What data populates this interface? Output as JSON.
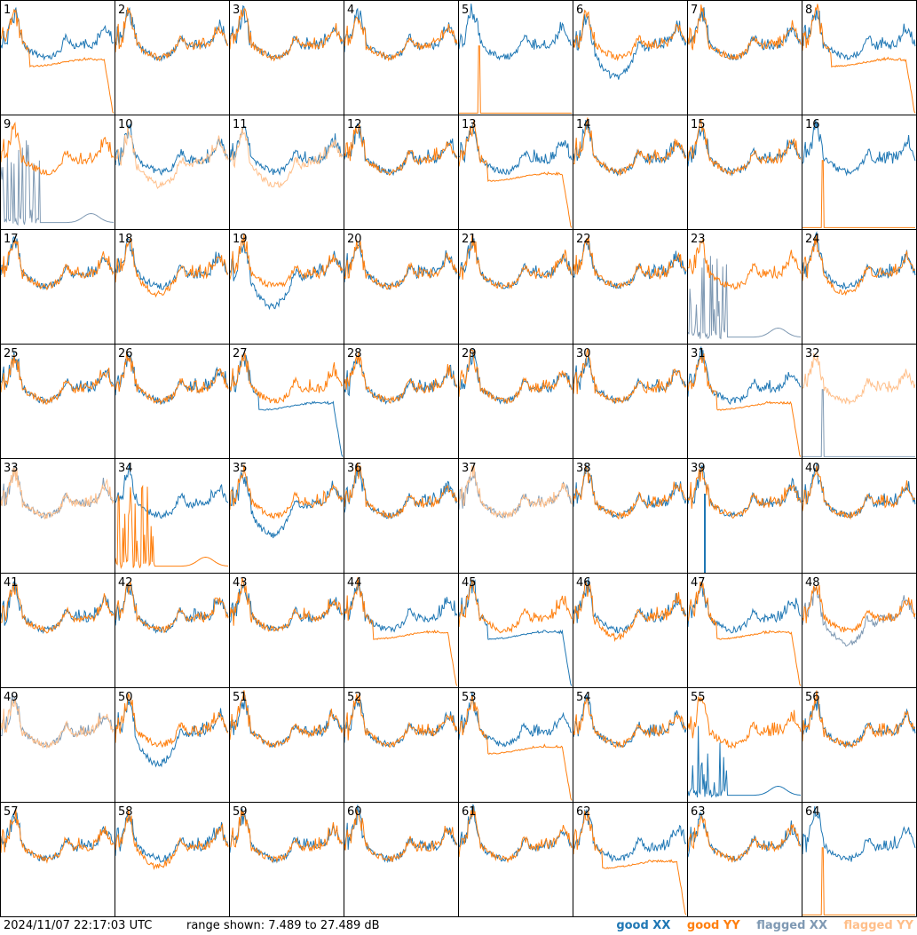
{
  "colors": {
    "good_xx": "#1f77b4",
    "good_yy": "#ff7f0e",
    "flagged_xx": "#7f99b3",
    "flagged_yy": "#ffbf8a",
    "grid": "#000000"
  },
  "footer": {
    "timestamp": "2024/11/07 22:17:03 UTC",
    "range": "range shown: 7.489 to 27.489 dB"
  },
  "legend": {
    "good_xx": "good XX",
    "good_yy": "good YY",
    "flagged_xx": "flagged XX",
    "flagged_yy": "flagged YY"
  },
  "chart_data": {
    "type": "line",
    "layout": "8x8 small multiples, antenna spectra",
    "y_range_db": [
      7.489,
      27.489
    ],
    "series_names": [
      "good XX",
      "good YY",
      "flagged XX",
      "flagged YY"
    ],
    "panels": [
      {
        "n": "1",
        "xx": "good",
        "yy": "good",
        "shape": "yy_dropoff"
      },
      {
        "n": "2",
        "xx": "good",
        "yy": "good",
        "shape": "normal"
      },
      {
        "n": "3",
        "xx": "good",
        "yy": "good",
        "shape": "normal"
      },
      {
        "n": "4",
        "xx": "good",
        "yy": "good",
        "shape": "normal"
      },
      {
        "n": "5",
        "xx": "good",
        "yy": "good",
        "shape": "yy_flat_spike"
      },
      {
        "n": "6",
        "xx": "good",
        "yy": "good",
        "shape": "xx_low"
      },
      {
        "n": "7",
        "xx": "good",
        "yy": "good",
        "shape": "normal"
      },
      {
        "n": "8",
        "xx": "good",
        "yy": "good",
        "shape": "yy_dropoff"
      },
      {
        "n": "9",
        "xx": "flagged",
        "yy": "good",
        "shape": "xx_spiky_low"
      },
      {
        "n": "10",
        "xx": "good",
        "yy": "flagged",
        "shape": "yy_lower"
      },
      {
        "n": "11",
        "xx": "good",
        "yy": "flagged",
        "shape": "yy_lower"
      },
      {
        "n": "12",
        "xx": "good",
        "yy": "good",
        "shape": "normal"
      },
      {
        "n": "13",
        "xx": "good",
        "yy": "good",
        "shape": "yy_dropoff"
      },
      {
        "n": "14",
        "xx": "good",
        "yy": "good",
        "shape": "normal"
      },
      {
        "n": "15",
        "xx": "good",
        "yy": "good",
        "shape": "normal"
      },
      {
        "n": "16",
        "xx": "good",
        "yy": "good",
        "shape": "yy_flat_spike"
      },
      {
        "n": "17",
        "xx": "good",
        "yy": "good",
        "shape": "normal"
      },
      {
        "n": "18",
        "xx": "good",
        "yy": "good",
        "shape": "yy_slightly_low"
      },
      {
        "n": "19",
        "xx": "good",
        "yy": "good",
        "shape": "xx_low"
      },
      {
        "n": "20",
        "xx": "good",
        "yy": "good",
        "shape": "normal"
      },
      {
        "n": "21",
        "xx": "good",
        "yy": "good",
        "shape": "normal"
      },
      {
        "n": "22",
        "xx": "good",
        "yy": "good",
        "shape": "normal"
      },
      {
        "n": "23",
        "xx": "flagged",
        "yy": "good",
        "shape": "xx_spiky_low"
      },
      {
        "n": "24",
        "xx": "good",
        "yy": "good",
        "shape": "yy_slightly_low"
      },
      {
        "n": "25",
        "xx": "good",
        "yy": "good",
        "shape": "normal"
      },
      {
        "n": "26",
        "xx": "good",
        "yy": "good",
        "shape": "normal"
      },
      {
        "n": "27",
        "xx": "good",
        "yy": "good",
        "shape": "xx_dropoff"
      },
      {
        "n": "28",
        "xx": "good",
        "yy": "good",
        "shape": "normal"
      },
      {
        "n": "29",
        "xx": "good",
        "yy": "good",
        "shape": "normal"
      },
      {
        "n": "30",
        "xx": "good",
        "yy": "good",
        "shape": "normal"
      },
      {
        "n": "31",
        "xx": "good",
        "yy": "good",
        "shape": "yy_dropoff"
      },
      {
        "n": "32",
        "xx": "flagged",
        "yy": "flagged",
        "shape": "xx_flat_spike"
      },
      {
        "n": "33",
        "xx": "flagged",
        "yy": "flagged",
        "shape": "normal"
      },
      {
        "n": "34",
        "xx": "good",
        "yy": "good",
        "shape": "yy_spiky_low"
      },
      {
        "n": "35",
        "xx": "good",
        "yy": "good",
        "shape": "xx_low"
      },
      {
        "n": "36",
        "xx": "good",
        "yy": "good",
        "shape": "normal"
      },
      {
        "n": "37",
        "xx": "flagged",
        "yy": "flagged",
        "shape": "normal"
      },
      {
        "n": "38",
        "xx": "good",
        "yy": "good",
        "shape": "normal"
      },
      {
        "n": "39",
        "xx": "good",
        "yy": "good",
        "shape": "normal_spike"
      },
      {
        "n": "40",
        "xx": "good",
        "yy": "good",
        "shape": "normal"
      },
      {
        "n": "41",
        "xx": "good",
        "yy": "good",
        "shape": "normal"
      },
      {
        "n": "42",
        "xx": "good",
        "yy": "good",
        "shape": "normal"
      },
      {
        "n": "43",
        "xx": "good",
        "yy": "good",
        "shape": "normal"
      },
      {
        "n": "44",
        "xx": "good",
        "yy": "good",
        "shape": "yy_dropoff"
      },
      {
        "n": "45",
        "xx": "good",
        "yy": "good",
        "shape": "xx_dropoff"
      },
      {
        "n": "46",
        "xx": "good",
        "yy": "good",
        "shape": "yy_slightly_low"
      },
      {
        "n": "47",
        "xx": "good",
        "yy": "good",
        "shape": "yy_dropoff"
      },
      {
        "n": "48",
        "xx": "flagged",
        "yy": "good",
        "shape": "xx_lower"
      },
      {
        "n": "49",
        "xx": "flagged",
        "yy": "flagged",
        "shape": "normal"
      },
      {
        "n": "50",
        "xx": "good",
        "yy": "good",
        "shape": "xx_low"
      },
      {
        "n": "51",
        "xx": "good",
        "yy": "good",
        "shape": "normal"
      },
      {
        "n": "52",
        "xx": "good",
        "yy": "good",
        "shape": "normal"
      },
      {
        "n": "53",
        "xx": "good",
        "yy": "good",
        "shape": "yy_dropoff"
      },
      {
        "n": "54",
        "xx": "good",
        "yy": "good",
        "shape": "normal"
      },
      {
        "n": "55",
        "xx": "good",
        "yy": "good",
        "shape": "xx_spiky_low"
      },
      {
        "n": "56",
        "xx": "good",
        "yy": "good",
        "shape": "normal"
      },
      {
        "n": "57",
        "xx": "good",
        "yy": "good",
        "shape": "normal"
      },
      {
        "n": "58",
        "xx": "good",
        "yy": "good",
        "shape": "yy_slightly_low"
      },
      {
        "n": "59",
        "xx": "good",
        "yy": "good",
        "shape": "normal"
      },
      {
        "n": "60",
        "xx": "good",
        "yy": "good",
        "shape": "normal"
      },
      {
        "n": "61",
        "xx": "good",
        "yy": "good",
        "shape": "normal"
      },
      {
        "n": "62",
        "xx": "good",
        "yy": "good",
        "shape": "yy_dropoff"
      },
      {
        "n": "63",
        "xx": "good",
        "yy": "good",
        "shape": "normal"
      },
      {
        "n": "64",
        "xx": "good",
        "yy": "good",
        "shape": "yy_flat_spike"
      }
    ]
  }
}
